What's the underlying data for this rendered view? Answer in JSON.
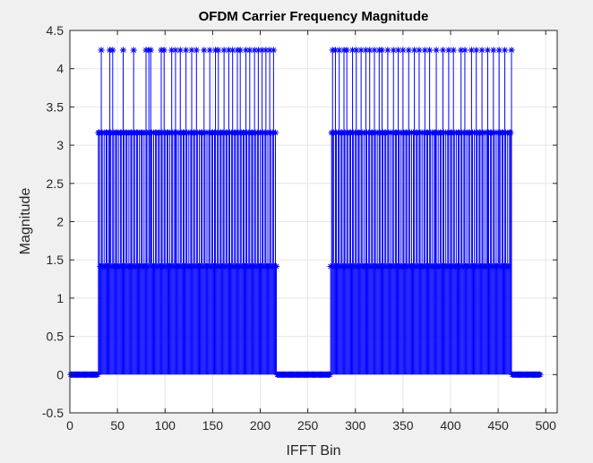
{
  "figure": {
    "background": "#f0f0f0",
    "axes_background": "#ffffff"
  },
  "chart_data": {
    "type": "stem",
    "title": "OFDM Carrier Frequency Magnitude",
    "xlabel": "IFFT Bin",
    "ylabel": "Magnitude",
    "xlim": [
      0,
      512
    ],
    "ylim": [
      -0.5,
      4.5
    ],
    "xticks": [
      0,
      50,
      100,
      150,
      200,
      250,
      300,
      350,
      400,
      450,
      500
    ],
    "yticks": [
      -0.5,
      0,
      0.5,
      1,
      1.5,
      2,
      2.5,
      3,
      3.5,
      4,
      4.5
    ],
    "ytick_labels": [
      "-0.5",
      "0",
      "0.5",
      "1",
      "1.5",
      "2",
      "2.5",
      "3",
      "3.5",
      "4",
      "4.5"
    ],
    "grid": true,
    "marker": "asterisk",
    "color": "#0000ff",
    "magnitude_levels": [
      1.414,
      3.162,
      4.243
    ],
    "series": [
      {
        "x_start": 1,
        "values": [
          0,
          0,
          0,
          0,
          0,
          0,
          0,
          0,
          0,
          0,
          0,
          0,
          0,
          0,
          0,
          0,
          0,
          0,
          0,
          0,
          0,
          0,
          0,
          0,
          0,
          0,
          0,
          0,
          0,
          3.162,
          3.162,
          1.414,
          4.243,
          3.162,
          1.414,
          3.162,
          1.414,
          3.162,
          3.162,
          1.414,
          3.162,
          4.243,
          3.162,
          1.414,
          4.243,
          3.162,
          1.414,
          3.162,
          3.162,
          1.414,
          3.162,
          1.414,
          3.162,
          3.162,
          1.414,
          4.243,
          3.162,
          1.414,
          3.162,
          3.162,
          1.414,
          3.162,
          1.414,
          3.162,
          3.162,
          1.414,
          4.243,
          3.162,
          1.414,
          3.162,
          3.162,
          1.414,
          3.162,
          1.414,
          3.162,
          3.162,
          1.414,
          3.162,
          1.414,
          4.243,
          3.162,
          1.414,
          4.243,
          3.162,
          4.243,
          3.162,
          1.414,
          3.162,
          1.414,
          3.162,
          3.162,
          1.414,
          3.162,
          3.162,
          1.414,
          4.243,
          3.162,
          1.414,
          4.243,
          3.162,
          1.414,
          3.162,
          3.162,
          1.414,
          3.162,
          1.414,
          4.243,
          3.162,
          1.414,
          3.162,
          4.243,
          3.162,
          1.414,
          3.162,
          1.414,
          4.243,
          3.162,
          1.414,
          3.162,
          3.162,
          1.414,
          4.243,
          3.162,
          1.414,
          3.162,
          1.414,
          3.162,
          4.243,
          1.414,
          3.162,
          3.162,
          1.414,
          4.243,
          3.162,
          1.414,
          3.162,
          1.414,
          3.162,
          3.162,
          1.414,
          4.243,
          3.162,
          1.414,
          3.162,
          1.414,
          3.162,
          4.243,
          1.414,
          3.162,
          3.162,
          1.414,
          3.162,
          4.243,
          1.414,
          3.162,
          4.243,
          1.414,
          3.162,
          3.162,
          1.414,
          3.162,
          4.243,
          1.414,
          3.162,
          3.162,
          1.414,
          4.243,
          3.162,
          1.414,
          3.162,
          4.243,
          1.414,
          3.162,
          3.162,
          1.414,
          4.243,
          3.162,
          1.414,
          4.243,
          3.162,
          1.414,
          3.162,
          3.162,
          1.414,
          4.243,
          3.162,
          1.414,
          3.162,
          4.243,
          1.414,
          3.162,
          3.162,
          1.414,
          4.243,
          3.162,
          1.414,
          3.162,
          4.243,
          1.414,
          3.162,
          1.414,
          4.243,
          3.162,
          1.414,
          3.162,
          4.243,
          1.414,
          3.162,
          1.414,
          4.243,
          3.162,
          1.414,
          3.162,
          4.243,
          1.414,
          3.162,
          1.414,
          0,
          0,
          0,
          0,
          0,
          0,
          0,
          0,
          0,
          0,
          0,
          0,
          0,
          0,
          0,
          0,
          0,
          0,
          0,
          0,
          0,
          0,
          0,
          0,
          0,
          0,
          0,
          0,
          0,
          0,
          0,
          0,
          0,
          0,
          0,
          0,
          0,
          0,
          0,
          0,
          0,
          0,
          0,
          0,
          0,
          0,
          0,
          0,
          0,
          0,
          0,
          0,
          0,
          0,
          0,
          0,
          1.414,
          3.162,
          4.243,
          3.162,
          1.414,
          4.243,
          3.162,
          1.414,
          3.162,
          4.243,
          1.414,
          3.162,
          3.162,
          1.414,
          4.243,
          3.162,
          1.414,
          4.243,
          3.162,
          1.414,
          3.162,
          3.162,
          1.414,
          4.243,
          3.162,
          1.414,
          3.162,
          4.243,
          1.414,
          3.162,
          3.162,
          1.414,
          4.243,
          3.162,
          1.414,
          3.162,
          1.414,
          4.243,
          3.162,
          1.414,
          3.162,
          4.243,
          1.414,
          3.162,
          3.162,
          1.414,
          4.243,
          3.162,
          1.414,
          3.162,
          1.414,
          4.243,
          3.162,
          1.414,
          4.243,
          3.162,
          1.414,
          3.162,
          3.162,
          1.414,
          4.243,
          3.162,
          1.414,
          3.162,
          1.414,
          3.162,
          4.243,
          1.414,
          3.162,
          3.162,
          1.414,
          4.243,
          3.162,
          1.414,
          3.162,
          1.414,
          4.243,
          3.162,
          1.414,
          3.162,
          3.162,
          1.414,
          4.243,
          3.162,
          1.414,
          3.162,
          1.414,
          3.162,
          4.243,
          1.414,
          3.162,
          3.162,
          1.414,
          4.243,
          3.162,
          1.414,
          3.162,
          1.414,
          3.162,
          4.243,
          1.414,
          3.162,
          3.162,
          1.414,
          4.243,
          3.162,
          1.414,
          3.162,
          1.414,
          3.162,
          3.162,
          4.243,
          1.414,
          3.162,
          1.414,
          3.162,
          3.162,
          1.414,
          4.243,
          3.162,
          1.414,
          3.162,
          1.414,
          3.162,
          4.243,
          1.414,
          3.162,
          3.162,
          1.414,
          4.243,
          3.162,
          1.414,
          3.162,
          1.414,
          3.162,
          3.162,
          1.414,
          4.243,
          3.162,
          1.414,
          3.162,
          4.243,
          1.414,
          3.162,
          1.414,
          3.162,
          3.162,
          1.414,
          4.243,
          3.162,
          1.414,
          3.162,
          1.414,
          4.243,
          3.162,
          1.414,
          3.162,
          3.162,
          1.414,
          4.243,
          3.162,
          1.414,
          3.162,
          1.414,
          3.162,
          4.243,
          3.162,
          1.414,
          3.162,
          3.162,
          1.414,
          4.243,
          3.162,
          1.414,
          3.162,
          1.414,
          3.162,
          4.243,
          3.162,
          1.414,
          3.162,
          3.162,
          1.414,
          4.243,
          3.162,
          1.414,
          3.162,
          1.414,
          3.162,
          3.162,
          4.243,
          0,
          0,
          0,
          0,
          0,
          0,
          0,
          0,
          0,
          0,
          0,
          0,
          0,
          0,
          0,
          0,
          0,
          0,
          0,
          0,
          0,
          0,
          0,
          0,
          0,
          0,
          0,
          0,
          0,
          0
        ]
      }
    ]
  }
}
